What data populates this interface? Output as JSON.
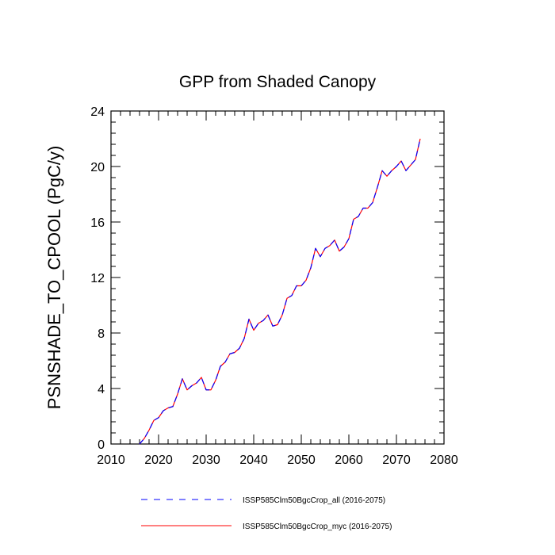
{
  "chart_data": {
    "type": "line",
    "title": "GPP from Shaded Canopy",
    "xlabel": "",
    "ylabel": "PSNSHADE_TO_CPOOL  (PgC/y)",
    "xlim": [
      2010,
      2080
    ],
    "ylim": [
      0,
      24
    ],
    "xticks": [
      2010,
      2020,
      2030,
      2040,
      2050,
      2060,
      2070,
      2080
    ],
    "yticks": [
      0,
      4,
      8,
      12,
      16,
      20,
      24
    ],
    "grid": false,
    "legend_position": "bottom",
    "x": [
      2016,
      2017,
      2018,
      2019,
      2020,
      2021,
      2022,
      2023,
      2024,
      2025,
      2026,
      2027,
      2028,
      2029,
      2030,
      2031,
      2032,
      2033,
      2034,
      2035,
      2036,
      2037,
      2038,
      2039,
      2040,
      2041,
      2042,
      2043,
      2044,
      2045,
      2046,
      2047,
      2048,
      2049,
      2050,
      2051,
      2052,
      2053,
      2054,
      2055,
      2056,
      2057,
      2058,
      2059,
      2060,
      2061,
      2062,
      2063,
      2064,
      2065,
      2066,
      2067,
      2068,
      2069,
      2070,
      2071,
      2072,
      2073,
      2074,
      2075
    ],
    "series": [
      {
        "name": "ISSP585Clm50BgcCrop_all (2016-2075)",
        "color": "#0000ff",
        "style": "dashed",
        "values": [
          0.0,
          0.4,
          1.0,
          1.7,
          1.9,
          2.4,
          2.6,
          2.7,
          3.6,
          4.7,
          3.9,
          4.2,
          4.4,
          4.8,
          3.9,
          3.9,
          4.6,
          5.6,
          5.9,
          6.5,
          6.6,
          6.9,
          7.6,
          9.0,
          8.2,
          8.7,
          8.9,
          9.3,
          8.5,
          8.6,
          9.3,
          10.5,
          10.7,
          11.4,
          11.4,
          11.8,
          12.7,
          14.1,
          13.5,
          14.1,
          14.3,
          14.7,
          13.9,
          14.2,
          14.8,
          16.2,
          16.4,
          17.0,
          17.0,
          17.4,
          18.5,
          19.7,
          19.3,
          19.7,
          20.0,
          20.4,
          19.7,
          20.1,
          20.5,
          22.0
        ]
      },
      {
        "name": "ISSP585Clm50BgcCrop_myc (2016-2075)",
        "color": "#ff0000",
        "style": "solid",
        "values": [
          0.0,
          0.4,
          1.0,
          1.7,
          1.9,
          2.4,
          2.6,
          2.7,
          3.6,
          4.7,
          3.9,
          4.2,
          4.4,
          4.8,
          3.9,
          3.9,
          4.6,
          5.6,
          5.9,
          6.5,
          6.6,
          6.9,
          7.6,
          9.0,
          8.2,
          8.7,
          8.9,
          9.3,
          8.5,
          8.6,
          9.3,
          10.5,
          10.7,
          11.4,
          11.4,
          11.8,
          12.7,
          14.1,
          13.5,
          14.1,
          14.3,
          14.7,
          13.9,
          14.2,
          14.8,
          16.2,
          16.4,
          17.0,
          17.0,
          17.4,
          18.5,
          19.7,
          19.3,
          19.7,
          20.0,
          20.4,
          19.7,
          20.1,
          20.5,
          22.0
        ]
      }
    ]
  }
}
